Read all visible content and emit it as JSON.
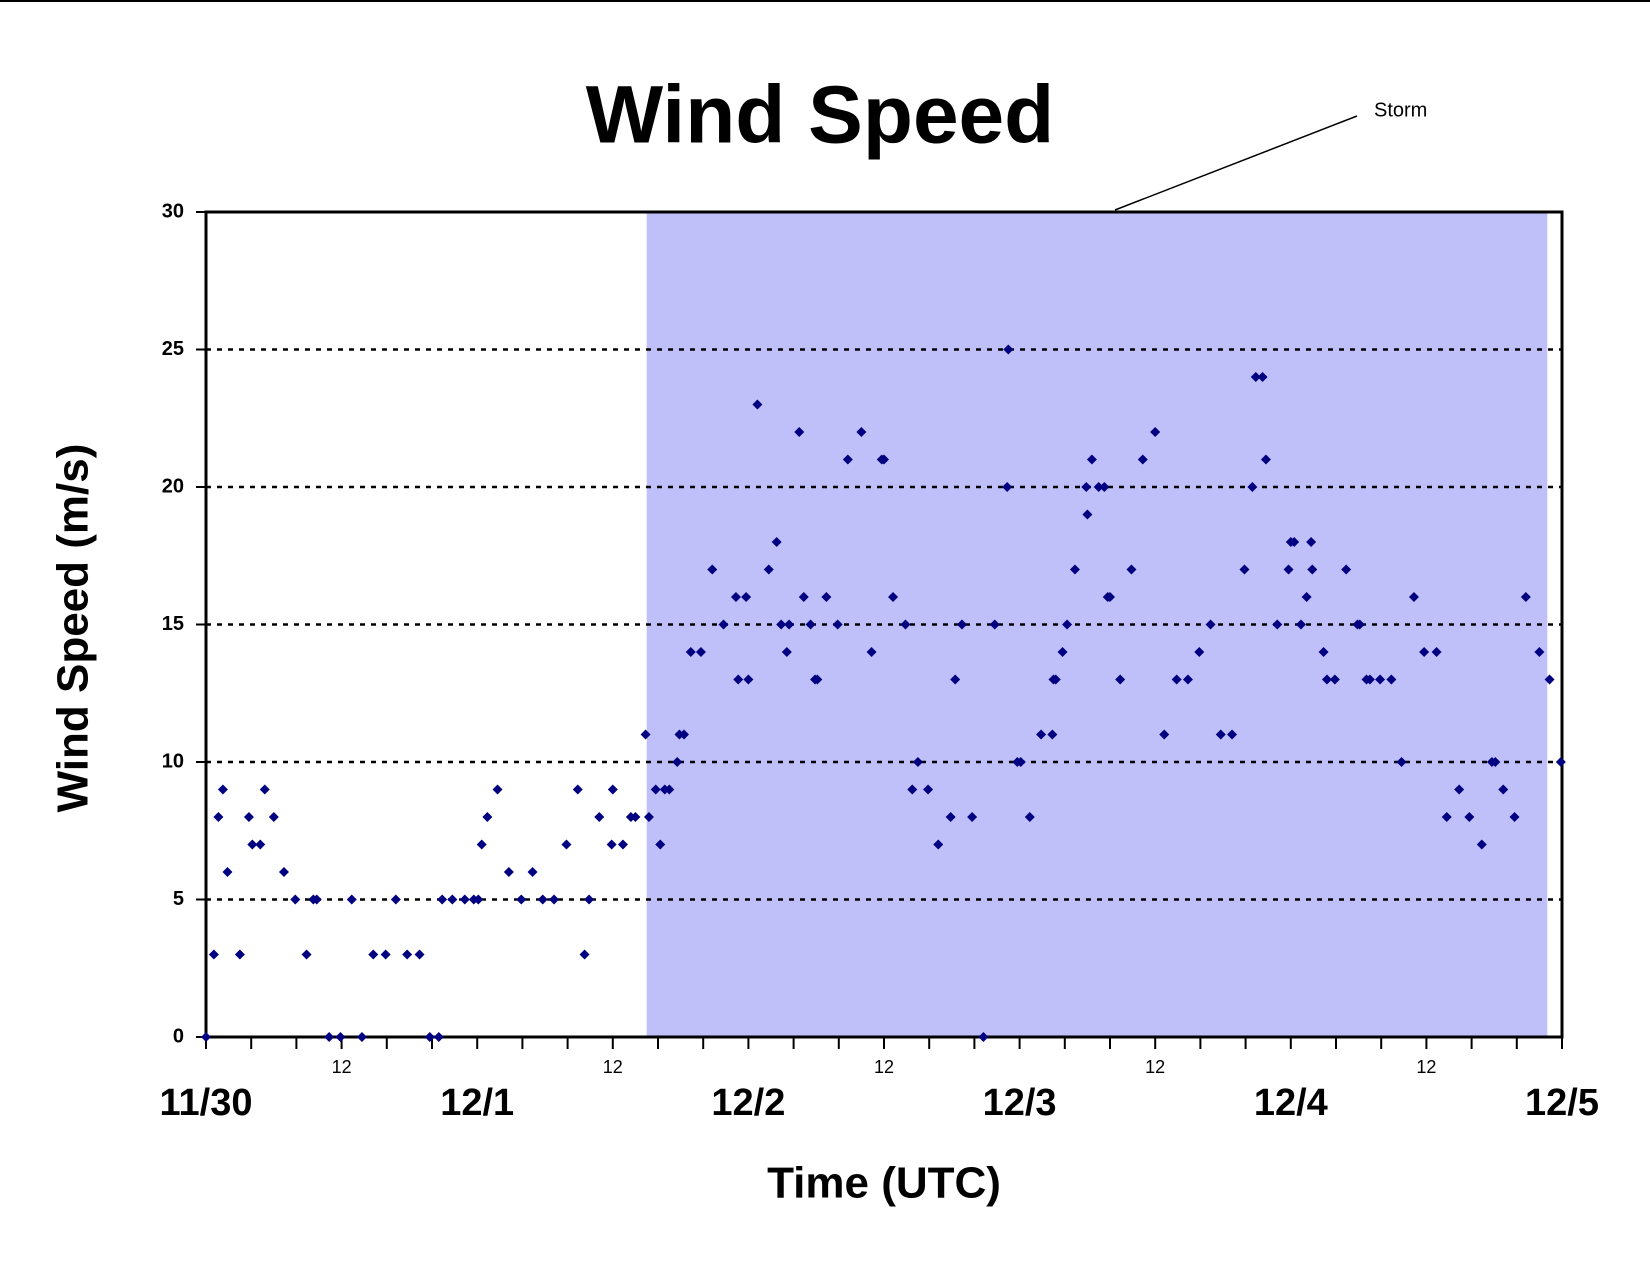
{
  "chart_data": {
    "type": "scatter",
    "title": "Wind Speed",
    "x_label": "Time (UTC)",
    "y_label": "Wind Speed (m/s)",
    "annotations": [
      {
        "text": "Storm"
      }
    ],
    "highlight": {
      "xlim": [
        39,
        118.7
      ],
      "color": "#bfbffa"
    },
    "xlim": [
      0,
      120
    ],
    "ylim": [
      0,
      30
    ],
    "yticks": [
      0,
      5,
      10,
      15,
      20,
      25,
      30
    ],
    "xticks": [
      {
        "value": 0,
        "label": "11/30"
      },
      {
        "value": 24,
        "label": "12/1"
      },
      {
        "value": 48,
        "label": "12/2"
      },
      {
        "value": 72,
        "label": "12/3"
      },
      {
        "value": 96,
        "label": "12/4"
      },
      {
        "value": 120,
        "label": "12/5"
      }
    ],
    "xticks_hour": [
      12,
      {
        "value": 36,
        "label": "12"
      },
      {
        "value": 60,
        "label": "12"
      },
      {
        "value": 84,
        "label": "12"
      },
      {
        "value": 108,
        "label": "12"
      }
    ],
    "xticks_minor": [
      4,
      8,
      16,
      20,
      28,
      32,
      40,
      44,
      52,
      56,
      64,
      68,
      76,
      80,
      88,
      92,
      100,
      104,
      112,
      116
    ],
    "grid": true,
    "x": [
      0,
      0.7,
      1.1,
      1.5,
      1.9,
      3.0,
      3.8,
      4.1,
      4.8,
      5.2,
      6.0,
      6.9,
      7.9,
      8.9,
      9.5,
      9.8,
      10.9,
      11.9,
      12.9,
      13.8,
      14.8,
      15.9,
      16.8,
      17.8,
      18.9,
      19.8,
      20.6,
      20.9,
      21.8,
      22.9,
      23.7,
      24.1,
      24.4,
      24.9,
      25.8,
      26.8,
      27.9,
      28.9,
      29.8,
      30.8,
      31.9,
      32.9,
      33.5,
      33.9,
      34.8,
      35.9,
      36.0,
      36.9,
      37.6,
      38.0,
      38.9,
      39.2,
      39.8,
      40.2,
      40.6,
      41.0,
      41.7,
      41.9,
      42.3,
      42.9,
      43.8,
      44.8,
      45.8,
      46.9,
      47.1,
      47.8,
      48.0,
      48.8,
      49.8,
      50.5,
      50.9,
      51.4,
      51.6,
      52.5,
      52.9,
      53.5,
      53.9,
      54.1,
      54.9,
      55.9,
      56.8,
      58.0,
      58.9,
      59.8,
      60.0,
      60.8,
      61.9,
      62.5,
      63.0,
      63.9,
      64.8,
      65.9,
      66.3,
      66.9,
      67.8,
      68.8,
      69.8,
      70.9,
      71.0,
      71.8,
      72.1,
      72.9,
      73.9,
      74.9,
      75.0,
      75.2,
      75.8,
      76.2,
      76.9,
      77.9,
      78.0,
      78.4,
      79.0,
      79.5,
      79.8,
      80.0,
      80.9,
      81.9,
      82.9,
      84.0,
      84.8,
      85.9,
      86.9,
      87.9,
      88.9,
      89.8,
      90.8,
      91.9,
      92.6,
      92.9,
      93.5,
      93.8,
      94.8,
      95.8,
      96.0,
      96.3,
      96.9,
      97.4,
      97.8,
      97.9,
      98.9,
      99.2,
      99.9,
      100.9,
      101.9,
      102.1,
      102.7,
      103.0,
      103.9,
      104.9,
      105.8,
      106.9,
      107.8,
      108.9,
      109.8,
      110.9,
      111.8,
      112.9,
      113.8,
      114.1,
      114.8,
      115.8,
      116.8,
      118.0,
      118.9,
      119.9
    ],
    "series": [
      {
        "color": "#000080",
        "values": [
          0,
          3,
          8,
          9,
          6,
          3,
          8,
          7,
          7,
          9,
          8,
          6,
          5,
          3,
          5,
          5,
          0,
          0,
          5,
          0,
          3,
          3,
          5,
          3,
          3,
          0,
          0,
          5,
          5,
          5,
          5,
          5,
          7,
          8,
          9,
          6,
          5,
          6,
          5,
          5,
          7,
          9,
          3,
          5,
          8,
          7,
          9,
          7,
          8,
          8,
          11,
          8,
          9,
          7,
          9,
          9,
          10,
          11,
          11,
          14,
          14,
          17,
          15,
          16,
          13,
          16,
          13,
          23,
          17,
          18,
          15,
          14,
          15,
          22,
          16,
          15,
          13,
          13,
          16,
          15,
          21,
          22,
          14,
          21,
          21,
          16,
          15,
          9,
          10,
          9,
          7,
          8,
          13,
          15,
          8,
          0,
          15,
          20,
          25,
          10,
          10,
          8,
          11,
          11,
          13,
          13,
          14,
          15,
          17,
          20,
          19,
          21,
          20,
          20,
          16,
          16,
          13,
          17,
          21,
          22,
          11,
          13,
          13,
          14,
          15,
          11,
          11,
          17,
          20,
          24,
          24,
          21,
          15,
          17,
          18,
          18,
          15,
          16,
          18,
          17,
          14,
          13,
          13,
          17,
          15,
          15,
          13,
          13,
          13,
          13,
          10,
          16,
          14,
          14,
          8,
          9,
          8,
          7,
          10,
          10,
          9,
          8,
          16,
          14,
          13,
          10
        ]
      }
    ]
  }
}
